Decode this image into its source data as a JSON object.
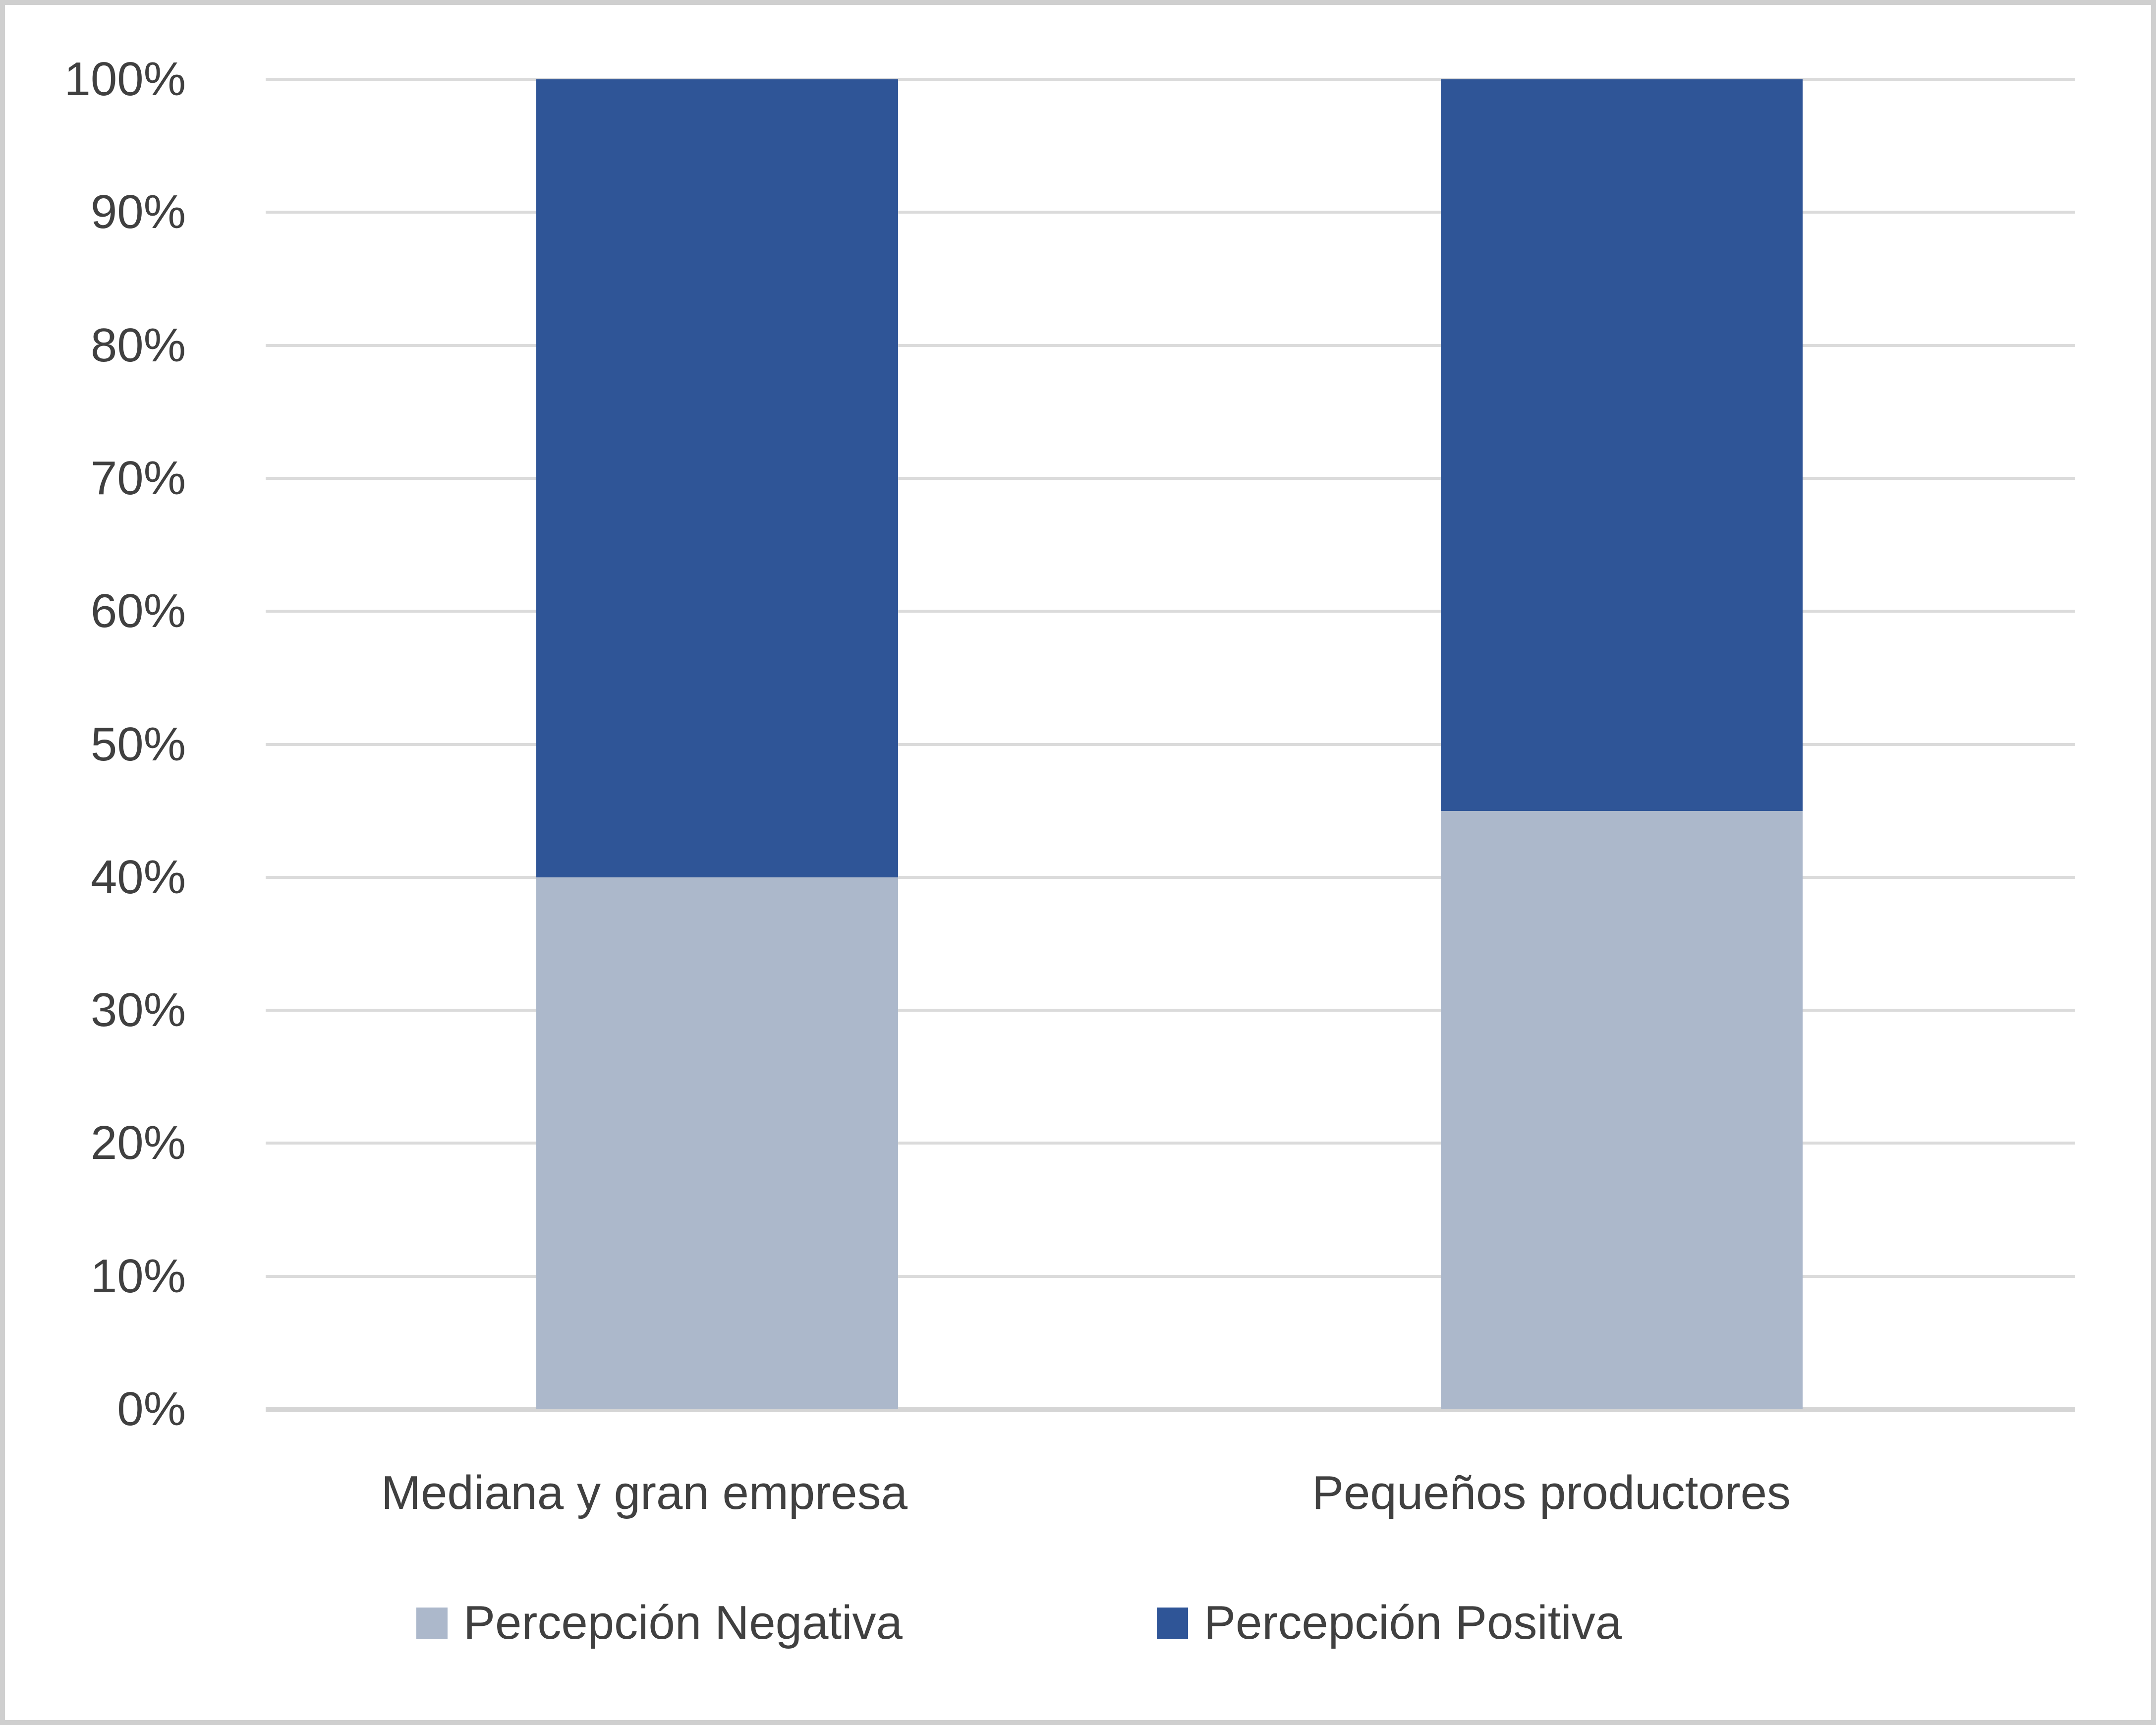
{
  "chart_data": {
    "type": "bar",
    "stacked": true,
    "percent_stacked": true,
    "categories": [
      "Mediana y gran empresa",
      "Pequeños productores"
    ],
    "series": [
      {
        "name": "Percepción Negativa",
        "color": "#ACB8CB",
        "values": [
          40,
          45
        ]
      },
      {
        "name": "Percepción Positiva",
        "color": "#2F5597",
        "values": [
          60,
          55
        ]
      }
    ],
    "ylim": [
      0,
      100
    ],
    "y_tick_labels": [
      "0%",
      "10%",
      "20%",
      "30%",
      "40%",
      "50%",
      "60%",
      "70%",
      "80%",
      "90%",
      "100%"
    ],
    "grid": true,
    "legend_position": "bottom"
  },
  "colors": {
    "gridline": "#DBDBDB",
    "axis_line": "#D5D5D5",
    "text": "#404040",
    "frame": "#CFCFCF",
    "background": "#FFFFFF"
  },
  "layout_values": {
    "bar_gap_note": "two bars, ~730px wide in a 3651px plot"
  }
}
